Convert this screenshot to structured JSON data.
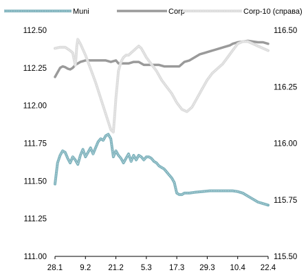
{
  "chart_data": {
    "type": "line",
    "x_tick_labels": [
      "28.1",
      "9.2",
      "21.2",
      "5.3",
      "17.3",
      "29.3",
      "10.4",
      "22.4"
    ],
    "x_range": [
      0,
      84
    ],
    "x_ticks": [
      0,
      12,
      24,
      36,
      48,
      60,
      72,
      84
    ],
    "left_axis": {
      "ylim": [
        111.0,
        112.5
      ],
      "tick_labels": [
        "112.50",
        "112.25",
        "112.00",
        "111.75",
        "111.50",
        "111.25",
        "111.00"
      ],
      "ticks": [
        112.5,
        112.25,
        112.0,
        111.75,
        111.5,
        111.25,
        111.0
      ]
    },
    "right_axis": {
      "ylim": [
        115.5,
        116.5
      ],
      "tick_labels": [
        "116.50",
        "116.25",
        "116.00",
        "115.75",
        "115.50"
      ],
      "ticks": [
        116.5,
        116.25,
        116.0,
        115.75,
        115.5
      ]
    },
    "legend_position": "top",
    "grid": false,
    "series": [
      {
        "name": "Muni",
        "axis": "left",
        "color": "#7fb3bd",
        "style": "band",
        "x": [
          0,
          1,
          2,
          3,
          4,
          5,
          6,
          7,
          8,
          9,
          10,
          11,
          12,
          13,
          14,
          15,
          16,
          17,
          18,
          19,
          20,
          21,
          22,
          23,
          24,
          25,
          26,
          27,
          28,
          29,
          30,
          31,
          32,
          33,
          34,
          35,
          36,
          37,
          38,
          39,
          40,
          41,
          42,
          43,
          44,
          45,
          46,
          47,
          48,
          49,
          50,
          51,
          52,
          53,
          55,
          58,
          61,
          64,
          67,
          70,
          72,
          74,
          76,
          78,
          80,
          82,
          84
        ],
        "values": [
          111.48,
          111.62,
          111.67,
          111.7,
          111.69,
          111.65,
          111.62,
          111.66,
          111.64,
          111.61,
          111.67,
          111.71,
          111.66,
          111.69,
          111.72,
          111.68,
          111.72,
          111.76,
          111.78,
          111.77,
          111.8,
          111.81,
          111.78,
          111.66,
          111.7,
          111.67,
          111.65,
          111.62,
          111.65,
          111.68,
          111.63,
          111.67,
          111.64,
          111.67,
          111.66,
          111.64,
          111.66,
          111.66,
          111.65,
          111.63,
          111.62,
          111.6,
          111.59,
          111.58,
          111.56,
          111.54,
          111.52,
          111.49,
          111.42,
          111.41,
          111.41,
          111.42,
          111.42,
          111.42,
          111.425,
          111.43,
          111.435,
          111.435,
          111.435,
          111.435,
          111.43,
          111.42,
          111.4,
          111.38,
          111.36,
          111.35,
          111.34
        ]
      },
      {
        "name": "Corp",
        "axis": "left",
        "color": "#9a9a9a",
        "style": "solid",
        "x": [
          0,
          1,
          2,
          3,
          4,
          5,
          6,
          7,
          8,
          9,
          10,
          12,
          14,
          16,
          18,
          20,
          22,
          24,
          25,
          27,
          29,
          31,
          33,
          35,
          37,
          39,
          41,
          43,
          45,
          47,
          49,
          51,
          53,
          55,
          57,
          59,
          61,
          63,
          65,
          67,
          69,
          70,
          72,
          74,
          76,
          78,
          80,
          82,
          84
        ],
        "values": [
          112.19,
          112.22,
          112.25,
          112.26,
          112.255,
          112.245,
          112.24,
          112.25,
          112.27,
          112.28,
          112.29,
          112.3,
          112.3,
          112.3,
          112.3,
          112.3,
          112.29,
          112.3,
          112.28,
          112.28,
          112.28,
          112.29,
          112.29,
          112.27,
          112.27,
          112.27,
          112.27,
          112.26,
          112.26,
          112.26,
          112.26,
          112.29,
          112.3,
          112.32,
          112.34,
          112.35,
          112.36,
          112.37,
          112.38,
          112.39,
          112.4,
          112.41,
          112.42,
          112.425,
          112.43,
          112.425,
          112.42,
          112.42,
          112.41
        ]
      },
      {
        "name": "Corp-10 (справа)",
        "axis": "right",
        "color": "#dcdcdc",
        "style": "band",
        "x": [
          0,
          2,
          4,
          6,
          7,
          8,
          8.3,
          8.6,
          9,
          10,
          12,
          14,
          16,
          18,
          20,
          22,
          23,
          23.5,
          24,
          25,
          26,
          27,
          28,
          29,
          30,
          31,
          32,
          33,
          34,
          35,
          36,
          38,
          40,
          42,
          44,
          46,
          48,
          50,
          52,
          54,
          56,
          58,
          60,
          62,
          64,
          66,
          68,
          70,
          72,
          74,
          76,
          78,
          80,
          82,
          84
        ],
        "values": [
          116.42,
          116.425,
          116.425,
          116.41,
          116.4,
          116.345,
          116.38,
          116.43,
          116.46,
          116.44,
          116.39,
          116.33,
          116.27,
          116.2,
          116.13,
          116.06,
          116.05,
          116.12,
          116.2,
          116.32,
          116.36,
          116.38,
          116.39,
          116.39,
          116.4,
          116.41,
          116.42,
          116.43,
          116.42,
          116.4,
          116.38,
          116.35,
          116.32,
          116.28,
          116.25,
          116.22,
          116.18,
          116.15,
          116.14,
          116.16,
          116.2,
          116.24,
          116.28,
          116.31,
          116.33,
          116.35,
          116.38,
          116.41,
          116.44,
          116.45,
          116.45,
          116.44,
          116.43,
          116.42,
          116.41
        ]
      }
    ]
  }
}
